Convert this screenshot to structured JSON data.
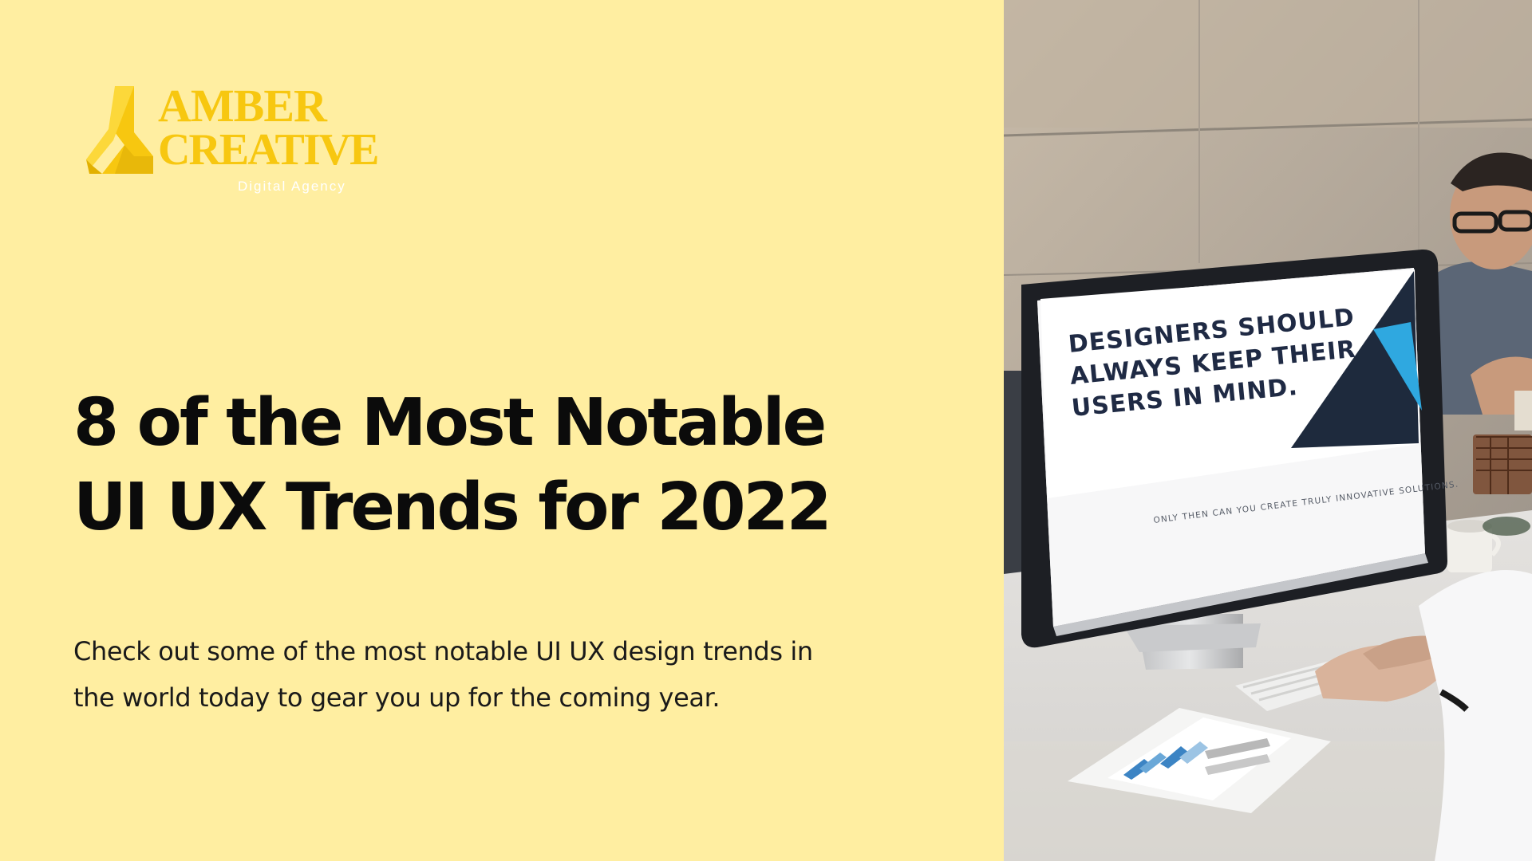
{
  "brand": {
    "line1": "AMBER",
    "line2": "CREATIVE",
    "tagline": "Digital Agency",
    "color": "#F7C710"
  },
  "headline": {
    "line1": "8 of the Most Notable",
    "line2": "UI UX Trends for 2022"
  },
  "description": {
    "line1": "Check out some of the most notable UI UX design trends in",
    "line2": "the world today to gear you up for the coming year."
  },
  "photo": {
    "screen_title": [
      "DESIGNERS SHOULD",
      "ALWAYS KEEP THEIR",
      "USERS IN MIND."
    ],
    "screen_subtitle": "ONLY THEN CAN YOU CREATE TRULY INNOVATIVE SOLUTIONS."
  },
  "colors": {
    "background": "#FFEEA1",
    "text": "#0B0B0B",
    "screen_accent": "#2FA8E0"
  }
}
